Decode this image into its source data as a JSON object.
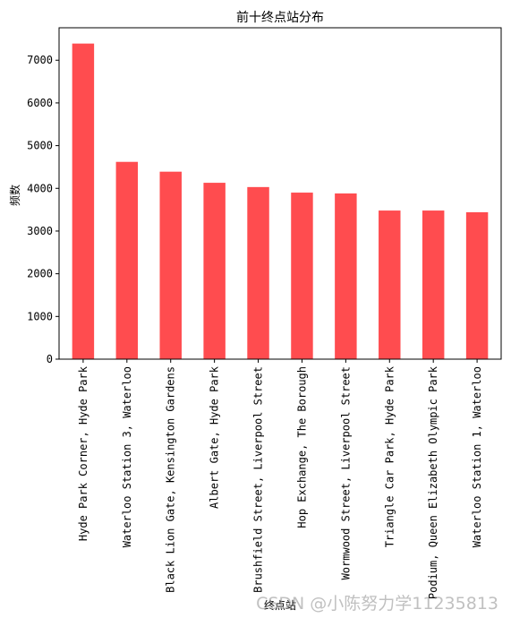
{
  "chart_data": {
    "type": "bar",
    "title": "前十终点站分布",
    "xlabel": "终点站",
    "ylabel": "频数",
    "categories": [
      "Hyde Park Corner, Hyde Park",
      "Waterloo Station 3, Waterloo",
      "Black Lion Gate, Kensington Gardens",
      "Albert Gate, Hyde Park",
      "Brushfield Street, Liverpool Street",
      "Hop Exchange, The Borough",
      "Wormwood Street, Liverpool Street",
      "Triangle Car Park, Hyde Park",
      "Podium, Queen Elizabeth Olympic Park",
      "Waterloo Station 1, Waterloo"
    ],
    "values": [
      7390,
      4620,
      4390,
      4130,
      4030,
      3900,
      3880,
      3480,
      3480,
      3440
    ],
    "ylim": [
      0,
      7760
    ],
    "yticks": [
      "0",
      "1000",
      "2000",
      "3000",
      "4000",
      "5000",
      "6000",
      "7000"
    ],
    "grid": false,
    "bar_color": "#ff4c4f"
  },
  "watermark": "CSDN @小陈努力学11235813"
}
